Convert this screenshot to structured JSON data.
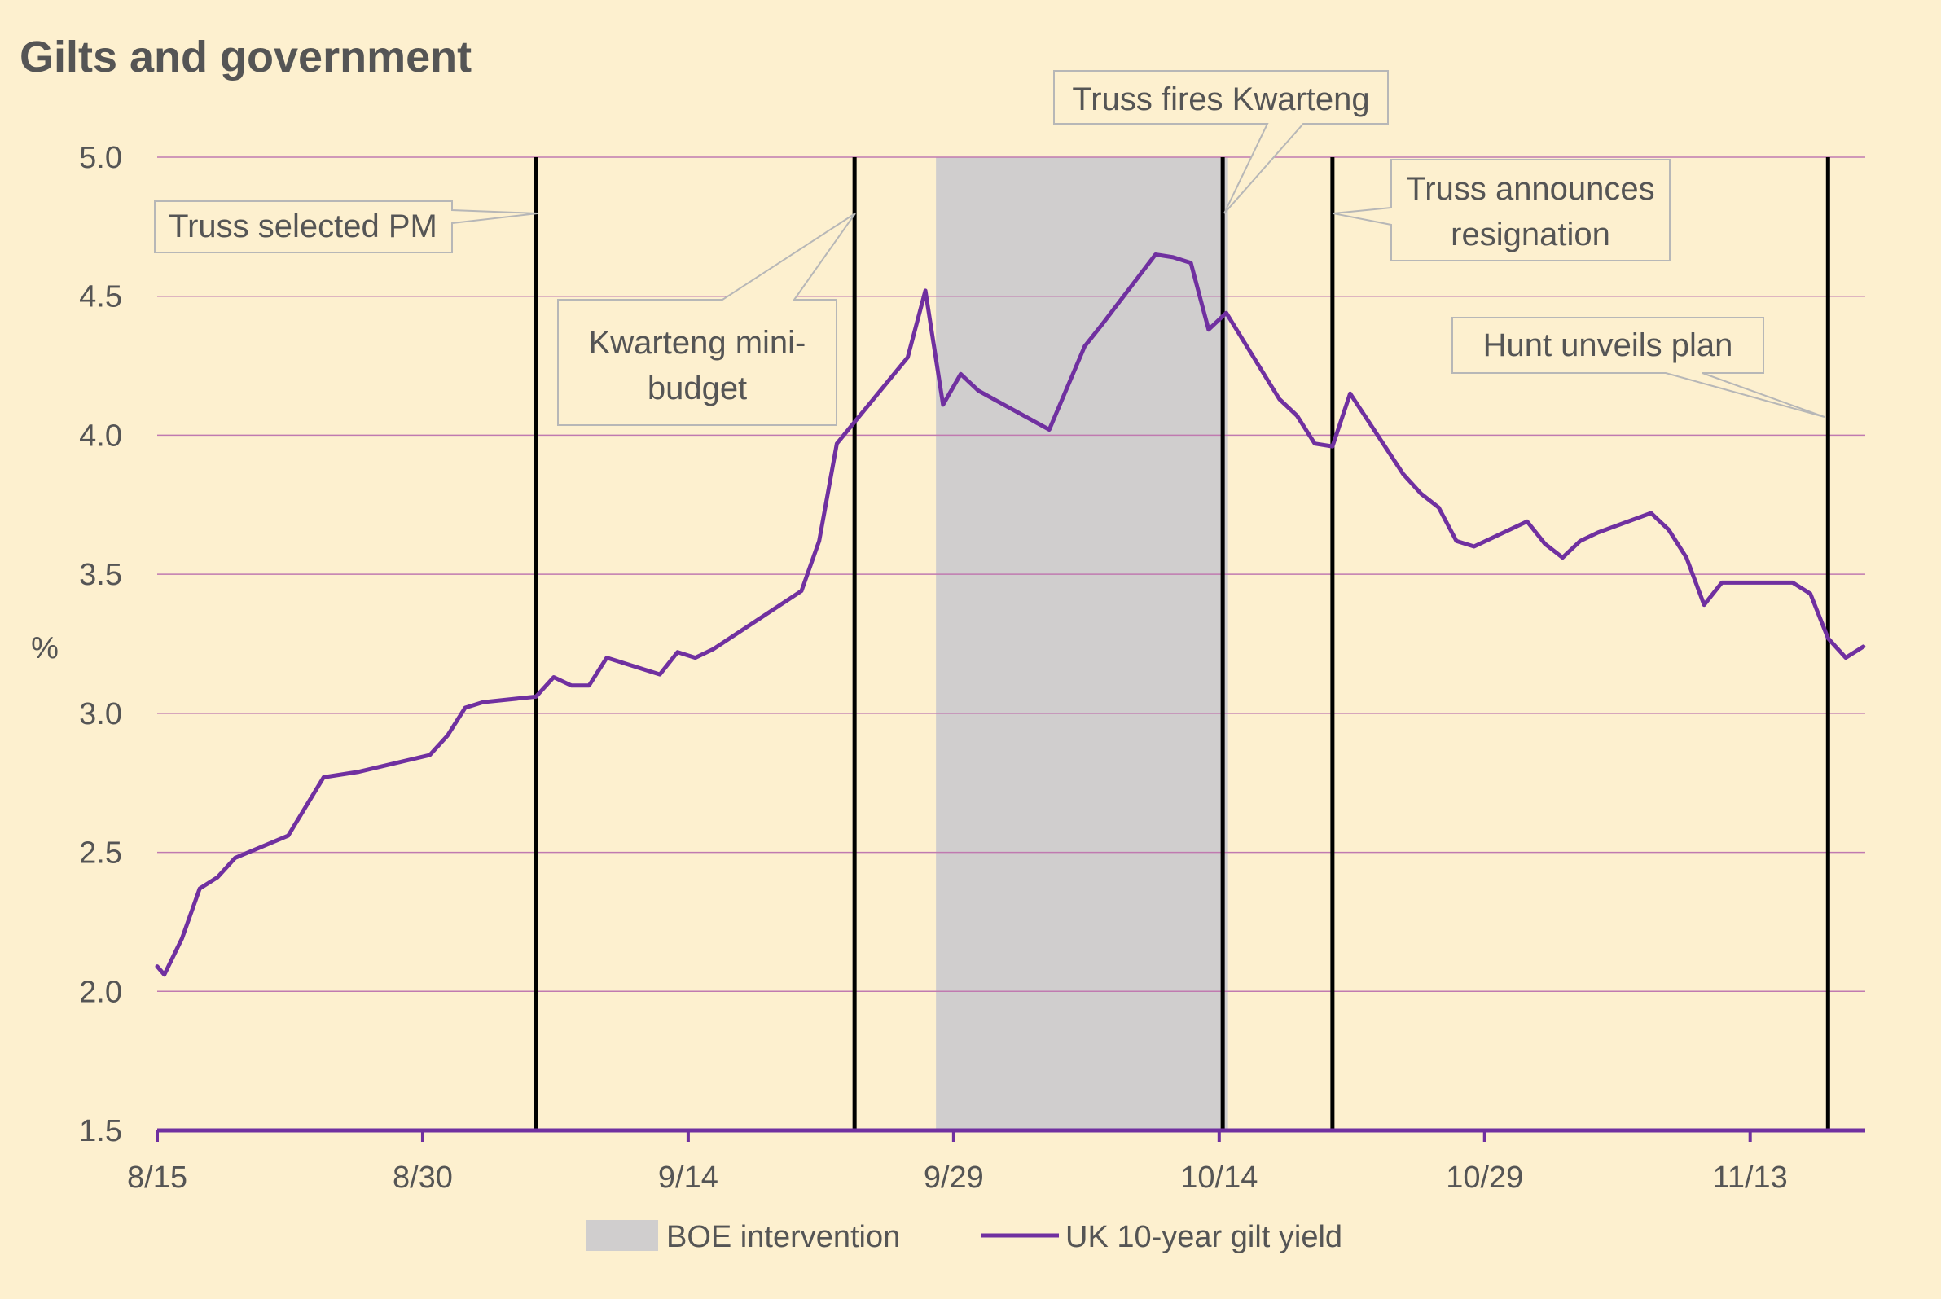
{
  "chart_data": {
    "type": "line",
    "title": "Gilts and government",
    "ylabel": "%",
    "xlabel": "",
    "ylim": [
      1.5,
      5.0
    ],
    "yticks": [
      "1.5",
      "2.0",
      "2.5",
      "3.0",
      "3.5",
      "4.0",
      "4.5",
      "5.0"
    ],
    "x_ticks": [
      {
        "label": "8/15",
        "day": 0
      },
      {
        "label": "8/30",
        "day": 15
      },
      {
        "label": "9/14",
        "day": 30
      },
      {
        "label": "9/29",
        "day": 45
      },
      {
        "label": "10/14",
        "day": 60
      },
      {
        "label": "10/29",
        "day": 75
      },
      {
        "label": "11/13",
        "day": 90
      }
    ],
    "legend": {
      "position": "bottom",
      "boe_label": "BOE intervention",
      "series_label": "UK 10-year gilt yield"
    },
    "colors": {
      "background": "#fdf0cf",
      "series": "#7030a0",
      "gridline": "#c07ab0",
      "shade": "#d0cece",
      "event_line": "#000000",
      "callout_border": "#b7b7b7"
    },
    "shaded_region": {
      "name": "BOE intervention",
      "start_day": 44.0,
      "end_day": 60.5
    },
    "series": [
      {
        "name": "UK 10-year gilt yield",
        "points": [
          [
            0,
            2.09
          ],
          [
            0.4,
            2.06
          ],
          [
            1.4,
            2.19
          ],
          [
            2.4,
            2.37
          ],
          [
            3.4,
            2.41
          ],
          [
            4.4,
            2.48
          ],
          [
            7.4,
            2.56
          ],
          [
            9.4,
            2.77
          ],
          [
            10.4,
            2.78
          ],
          [
            11.4,
            2.79
          ],
          [
            15.4,
            2.85
          ],
          [
            16.4,
            2.92
          ],
          [
            17.4,
            3.02
          ],
          [
            18.4,
            3.04
          ],
          [
            21.4,
            3.06
          ],
          [
            22.4,
            3.13
          ],
          [
            23.4,
            3.1
          ],
          [
            24.4,
            3.1
          ],
          [
            25.4,
            3.2
          ],
          [
            28.4,
            3.14
          ],
          [
            29.4,
            3.22
          ],
          [
            30.4,
            3.2
          ],
          [
            31.4,
            3.23
          ],
          [
            36.4,
            3.44
          ],
          [
            37.4,
            3.62
          ],
          [
            38.4,
            3.97
          ],
          [
            42.4,
            4.28
          ],
          [
            43.4,
            4.52
          ],
          [
            44.4,
            4.11
          ],
          [
            45.4,
            4.22
          ],
          [
            46.4,
            4.16
          ],
          [
            50.4,
            4.02
          ],
          [
            52.4,
            4.32
          ],
          [
            53.4,
            4.4
          ],
          [
            56.4,
            4.65
          ],
          [
            57.4,
            4.64
          ],
          [
            58.4,
            4.62
          ],
          [
            59.4,
            4.38
          ],
          [
            60.4,
            4.44
          ],
          [
            63.4,
            4.13
          ],
          [
            64.4,
            4.07
          ],
          [
            65.4,
            3.97
          ],
          [
            66.4,
            3.96
          ],
          [
            67.4,
            4.15
          ],
          [
            70.4,
            3.86
          ],
          [
            71.4,
            3.79
          ],
          [
            72.4,
            3.74
          ],
          [
            73.4,
            3.62
          ],
          [
            74.4,
            3.6
          ],
          [
            77.4,
            3.69
          ],
          [
            78.4,
            3.61
          ],
          [
            79.4,
            3.56
          ],
          [
            80.4,
            3.62
          ],
          [
            81.4,
            3.65
          ],
          [
            84.4,
            3.72
          ],
          [
            85.4,
            3.66
          ],
          [
            86.4,
            3.56
          ],
          [
            87.4,
            3.39
          ],
          [
            88.4,
            3.47
          ],
          [
            92.4,
            3.47
          ],
          [
            93.4,
            3.43
          ],
          [
            94.4,
            3.27
          ],
          [
            95.4,
            3.2
          ],
          [
            96.4,
            3.24
          ]
        ]
      }
    ],
    "events": [
      {
        "label": "Truss selected PM",
        "day": 21.4
      },
      {
        "label": "Kwarteng mini-budget",
        "day": 39.4
      },
      {
        "label": "Truss fires Kwarteng",
        "day": 60.2
      },
      {
        "label": "Truss announces resignation",
        "day": 66.4
      },
      {
        "label": "Hunt unveils plan",
        "day": 94.4
      }
    ],
    "annotations": {
      "truss_pm": "Truss selected PM",
      "kwarteng_1": "Kwarteng mini-",
      "kwarteng_2": "budget",
      "fires": "Truss fires Kwarteng",
      "resign_1": "Truss announces",
      "resign_2": "resignation",
      "hunt": "Hunt unveils plan"
    }
  }
}
